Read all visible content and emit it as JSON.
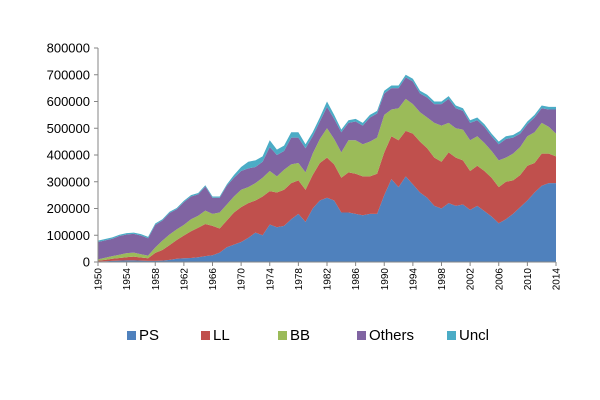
{
  "chart_data": {
    "type": "area",
    "stacked": true,
    "title": "",
    "xlabel": "",
    "ylabel": "",
    "ylim": [
      0,
      800000
    ],
    "yticks": [
      "0",
      "100000",
      "200000",
      "300000",
      "400000",
      "500000",
      "600000",
      "700000",
      "800000"
    ],
    "xlim": [
      1950,
      2014
    ],
    "xticks": [
      "1950",
      "1954",
      "1958",
      "1962",
      "1966",
      "1970",
      "1974",
      "1978",
      "1982",
      "1986",
      "1990",
      "1994",
      "1998",
      "2002",
      "2006",
      "2010",
      "2014"
    ],
    "grid": false,
    "legend": "bottom",
    "x": [
      1950,
      1951,
      1952,
      1953,
      1954,
      1955,
      1956,
      1957,
      1958,
      1959,
      1960,
      1961,
      1962,
      1963,
      1964,
      1965,
      1966,
      1967,
      1968,
      1969,
      1970,
      1971,
      1972,
      1973,
      1974,
      1975,
      1976,
      1977,
      1978,
      1979,
      1980,
      1981,
      1982,
      1983,
      1984,
      1985,
      1986,
      1987,
      1988,
      1989,
      1990,
      1991,
      1992,
      1993,
      1994,
      1995,
      1996,
      1997,
      1998,
      1999,
      2000,
      2001,
      2002,
      2003,
      2004,
      2005,
      2006,
      2007,
      2008,
      2009,
      2010,
      2011,
      2012,
      2013,
      2014
    ],
    "series": [
      {
        "name": "PS",
        "color": "#4f81bd",
        "values": [
          2000,
          3000,
          4000,
          5000,
          6000,
          6000,
          5000,
          4000,
          4000,
          5000,
          8000,
          12000,
          14000,
          15000,
          18000,
          22000,
          25000,
          35000,
          55000,
          65000,
          75000,
          90000,
          110000,
          100000,
          140000,
          130000,
          135000,
          160000,
          180000,
          150000,
          200000,
          230000,
          240000,
          230000,
          185000,
          185000,
          180000,
          175000,
          180000,
          180000,
          250000,
          310000,
          280000,
          320000,
          290000,
          260000,
          240000,
          210000,
          200000,
          220000,
          210000,
          215000,
          195000,
          210000,
          190000,
          170000,
          145000,
          160000,
          180000,
          205000,
          230000,
          260000,
          285000,
          295000,
          295000
        ]
      },
      {
        "name": "LL",
        "color": "#c0504d",
        "values": [
          3000,
          5000,
          8000,
          10000,
          12000,
          14000,
          12000,
          10000,
          30000,
          40000,
          55000,
          70000,
          85000,
          100000,
          110000,
          120000,
          110000,
          90000,
          100000,
          120000,
          130000,
          130000,
          120000,
          145000,
          125000,
          130000,
          135000,
          135000,
          125000,
          120000,
          125000,
          140000,
          150000,
          135000,
          130000,
          150000,
          150000,
          145000,
          140000,
          150000,
          160000,
          160000,
          175000,
          170000,
          190000,
          190000,
          185000,
          180000,
          175000,
          190000,
          180000,
          165000,
          145000,
          150000,
          150000,
          145000,
          135000,
          140000,
          125000,
          120000,
          130000,
          110000,
          120000,
          110000,
          100000
        ]
      },
      {
        "name": "BB",
        "color": "#9bbb59",
        "values": [
          5000,
          8000,
          10000,
          12000,
          15000,
          15000,
          12000,
          10000,
          20000,
          35000,
          40000,
          40000,
          40000,
          45000,
          45000,
          50000,
          45000,
          60000,
          60000,
          60000,
          65000,
          60000,
          65000,
          70000,
          75000,
          60000,
          75000,
          70000,
          65000,
          65000,
          80000,
          90000,
          110000,
          95000,
          95000,
          120000,
          125000,
          120000,
          130000,
          135000,
          140000,
          100000,
          120000,
          120000,
          110000,
          110000,
          115000,
          130000,
          135000,
          110000,
          110000,
          115000,
          115000,
          110000,
          105000,
          100000,
          100000,
          90000,
          100000,
          105000,
          110000,
          115000,
          115000,
          100000,
          85000
        ]
      },
      {
        "name": "Others",
        "color": "#8064a2",
        "values": [
          65000,
          65000,
          65000,
          70000,
          70000,
          70000,
          70000,
          65000,
          85000,
          75000,
          80000,
          75000,
          85000,
          85000,
          80000,
          90000,
          60000,
          55000,
          70000,
          70000,
          70000,
          70000,
          60000,
          60000,
          90000,
          80000,
          70000,
          100000,
          95000,
          90000,
          65000,
          65000,
          80000,
          75000,
          75000,
          65000,
          70000,
          70000,
          90000,
          90000,
          80000,
          80000,
          75000,
          80000,
          85000,
          70000,
          75000,
          70000,
          80000,
          90000,
          75000,
          70000,
          65000,
          60000,
          60000,
          55000,
          60000,
          70000,
          60000,
          50000,
          45000,
          55000,
          55000,
          65000,
          90000
        ]
      },
      {
        "name": "Uncl",
        "color": "#4bacc6",
        "values": [
          5000,
          5000,
          5000,
          5000,
          5000,
          5000,
          5000,
          5000,
          5000,
          5000,
          5000,
          5000,
          5000,
          5000,
          5000,
          5000,
          5000,
          5000,
          5000,
          10000,
          15000,
          25000,
          25000,
          20000,
          25000,
          20000,
          20000,
          20000,
          20000,
          15000,
          15000,
          15000,
          20000,
          15000,
          10000,
          10000,
          10000,
          10000,
          10000,
          10000,
          10000,
          10000,
          10000,
          10000,
          10000,
          10000,
          10000,
          10000,
          10000,
          10000,
          10000,
          10000,
          10000,
          10000,
          10000,
          10000,
          10000,
          10000,
          10000,
          10000,
          10000,
          10000,
          10000,
          10000,
          10000
        ]
      }
    ]
  }
}
